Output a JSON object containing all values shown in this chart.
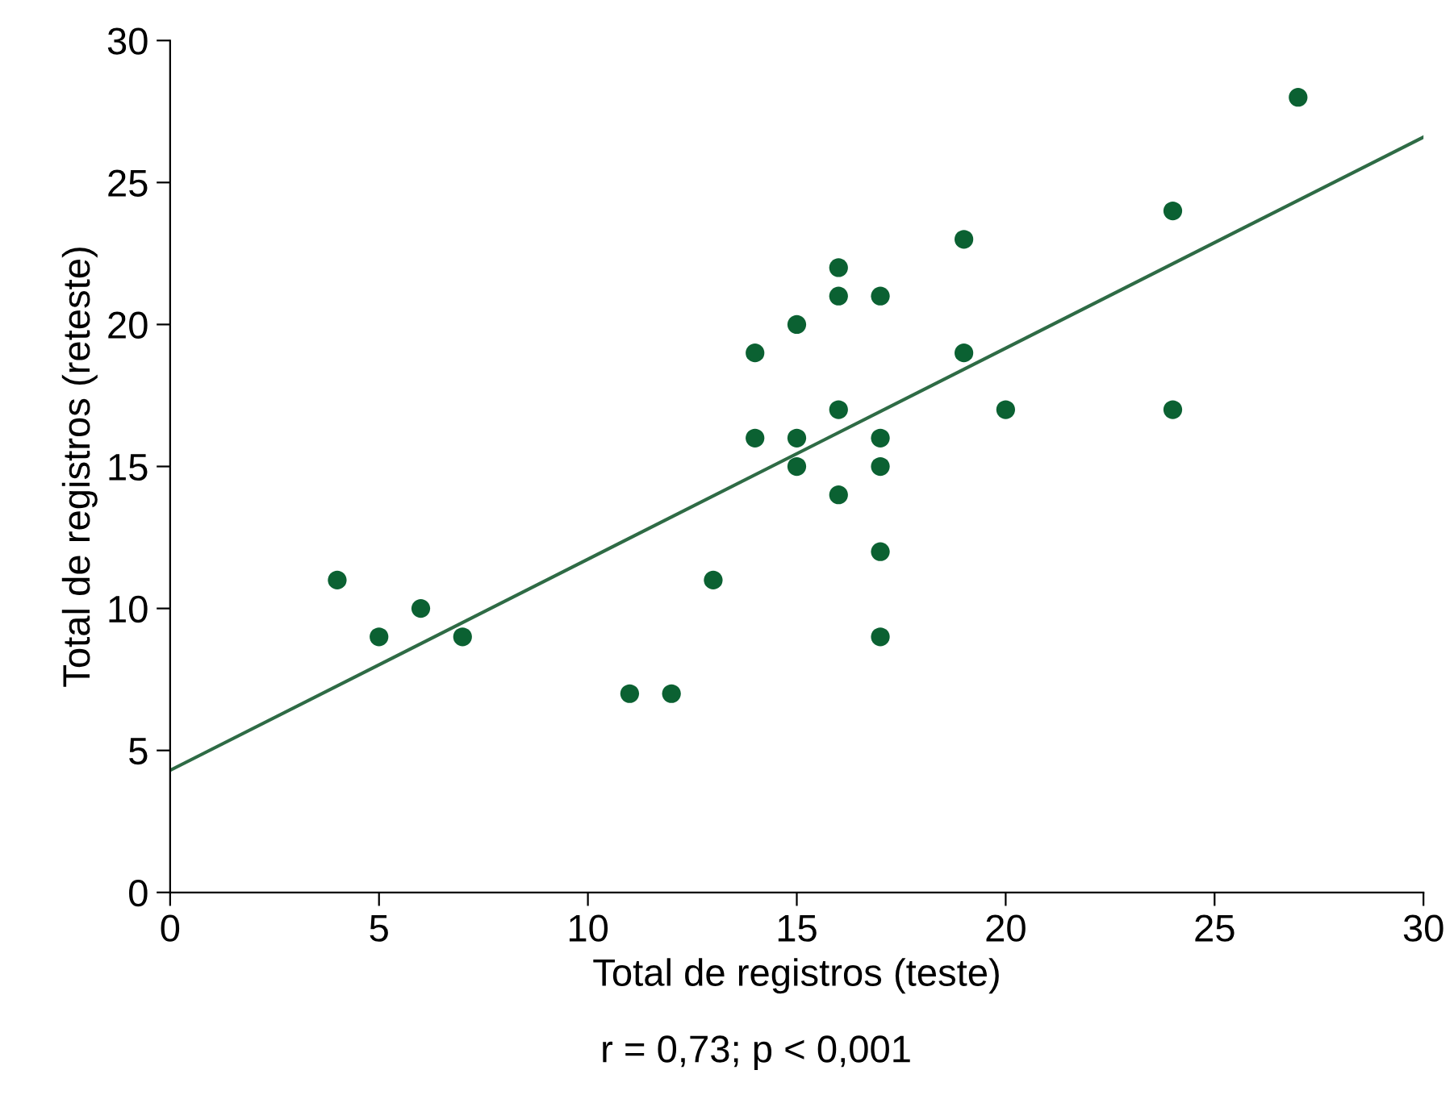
{
  "chart_data": {
    "type": "scatter",
    "xlabel": "Total de registros (teste)",
    "ylabel": "Total de registros (reteste)",
    "annotations": [
      "r = 0,73; p < 0,001"
    ],
    "series": [
      {
        "color": "#0b6132",
        "x": [
          4,
          5,
          6,
          7,
          11,
          12,
          13,
          14,
          14,
          15,
          15,
          15,
          16,
          16,
          16,
          16,
          17,
          17,
          17,
          17,
          17,
          19,
          19,
          20,
          24,
          24,
          27
        ],
        "values": [
          11,
          9,
          10,
          9,
          7,
          7,
          11,
          19,
          16,
          20,
          16,
          15,
          22,
          21,
          17,
          14,
          21,
          16,
          15,
          12,
          9,
          23,
          19,
          17,
          24,
          17,
          28
        ]
      },
      {
        "type": "line",
        "color": "#2e6b45",
        "x": [
          0,
          30
        ],
        "values": [
          4.3,
          26.6
        ]
      }
    ],
    "xlim": [
      0,
      30
    ],
    "ylim": [
      0,
      30
    ],
    "xticks": [
      0,
      5,
      10,
      15,
      20,
      25,
      30
    ],
    "yticks": [
      0,
      5,
      10,
      15,
      20,
      25,
      30
    ],
    "grid": false,
    "legend": false
  }
}
